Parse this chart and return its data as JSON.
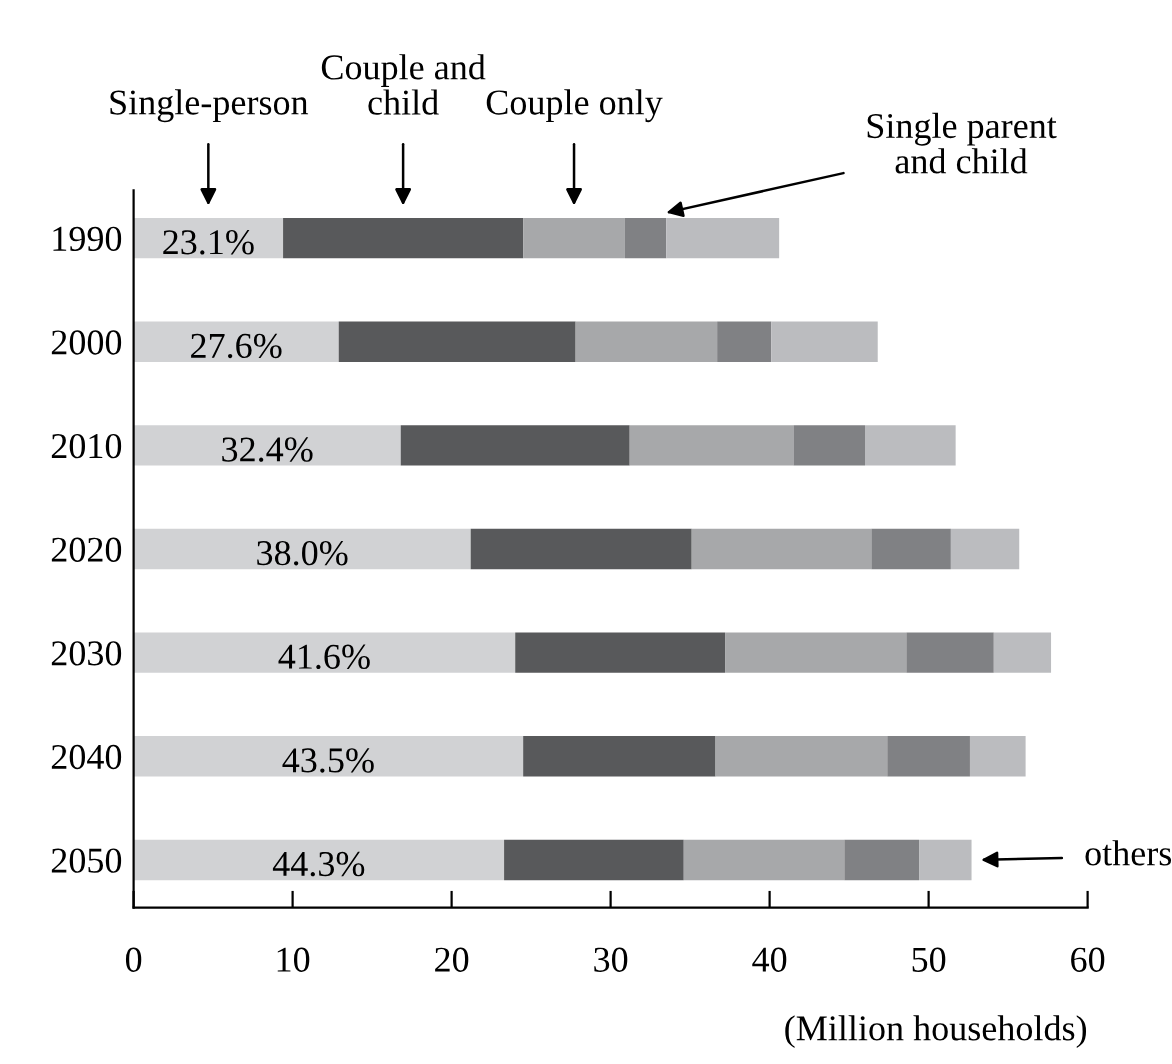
{
  "chart_data": {
    "type": "bar",
    "orientation": "horizontal",
    "stacked": true,
    "categories": [
      "1990",
      "2000",
      "2010",
      "2020",
      "2030",
      "2040",
      "2050"
    ],
    "series": [
      {
        "name": "Single-person",
        "color": "#d1d2d4",
        "values": [
          9.4,
          12.9,
          16.8,
          21.2,
          24.0,
          24.5,
          23.3
        ]
      },
      {
        "name": "Couple and\nchild",
        "color": "#58595b",
        "values": [
          15.1,
          14.9,
          14.4,
          13.9,
          13.2,
          12.1,
          11.3
        ]
      },
      {
        "name": "Couple only",
        "color": "#a7a8aa",
        "values": [
          6.4,
          8.9,
          10.3,
          11.3,
          11.4,
          10.8,
          10.1
        ]
      },
      {
        "name": "Single parent\nand child",
        "color": "#808184",
        "values": [
          2.6,
          3.4,
          4.5,
          5.0,
          5.5,
          5.2,
          4.7
        ]
      },
      {
        "name": "others",
        "color": "#bbbcbf",
        "values": [
          7.1,
          6.7,
          5.7,
          4.3,
          3.6,
          3.5,
          3.3
        ]
      }
    ],
    "annotations": [
      "23.1%",
      "27.6%",
      "32.4%",
      "38.0%",
      "41.6%",
      "43.5%",
      "44.3%"
    ],
    "xlabel": "(Million households)",
    "xlim": [
      0,
      60
    ],
    "xticks": [
      0,
      10,
      20,
      30,
      40,
      50,
      60
    ],
    "grid": false,
    "legend": false
  }
}
